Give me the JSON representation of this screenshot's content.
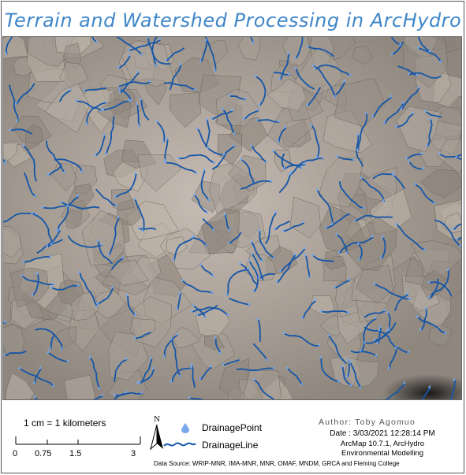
{
  "title": "Terrain and Watershed Processing in ArcHydro",
  "map": {
    "background_color": "#a39b92",
    "stream_color": "#1556a8",
    "point_color": "#7aa9ea",
    "layers": [
      "terrain-hillshade",
      "catchment-polygons",
      "drainage-lines",
      "drainage-points"
    ]
  },
  "scale": {
    "label": "1 cm = 1 kilometers",
    "ticks": [
      "0",
      "0.75",
      "1.5",
      "3"
    ]
  },
  "north_arrow": {
    "label": "N"
  },
  "legend": {
    "point_label": "DrainagePoint",
    "line_label": "DrainageLine"
  },
  "credits": {
    "author": "Author: Toby Agomuo",
    "date": "Date : 3/03/2021 12:28:14 PM",
    "software": "ArcMap 10.7.1, ArcHydro",
    "course": "Environmental Modelling",
    "source": "Data Source: WRIP-MNR, IMA-MNR, MNR, OMAF, MNDM, GRCA and Fleming College"
  }
}
